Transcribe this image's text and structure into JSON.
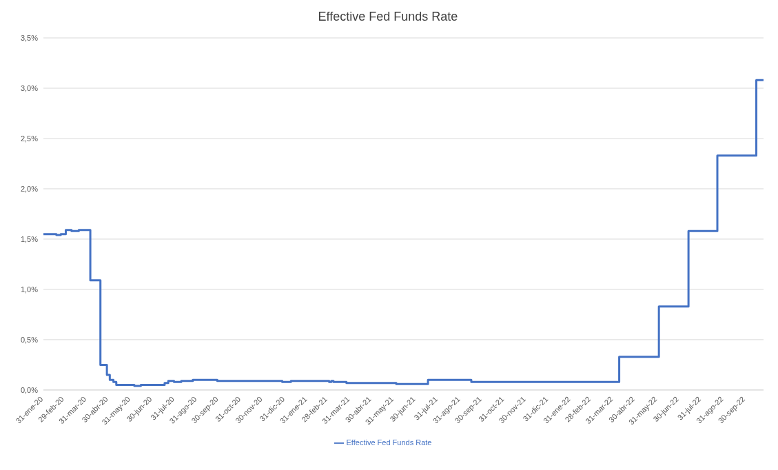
{
  "chart_data": {
    "type": "step",
    "title": "Effective Fed Funds Rate",
    "x": [
      "2020-01-31",
      "2020-02-14",
      "2020-02-18",
      "2020-02-24",
      "2020-03-02",
      "2020-03-10",
      "2020-03-20",
      "2020-04-05",
      "2020-04-14",
      "2020-04-19",
      "2020-04-26",
      "2020-04-28",
      "2020-05-02",
      "2020-05-07",
      "2020-05-11",
      "2020-06-05",
      "2020-06-14",
      "2020-07-06",
      "2020-07-17",
      "2020-07-22",
      "2020-07-30",
      "2020-08-09",
      "2020-08-25",
      "2020-09-28",
      "2020-12-27",
      "2021-01-08",
      "2021-03-02",
      "2021-03-05",
      "2021-03-08",
      "2021-03-26",
      "2021-06-03",
      "2021-07-17",
      "2021-09-15",
      "2022-04-08",
      "2022-06-02",
      "2022-07-13",
      "2022-08-22",
      "2022-10-15",
      "2022-10-25"
    ],
    "series": [
      {
        "name": "Effective Fed Funds Rate",
        "color": "#4472c4",
        "values": [
          1.55,
          1.55,
          1.54,
          1.55,
          1.59,
          1.58,
          1.59,
          1.09,
          1.09,
          0.25,
          0.25,
          0.15,
          0.1,
          0.08,
          0.05,
          0.04,
          0.05,
          0.05,
          0.07,
          0.09,
          0.08,
          0.09,
          0.1,
          0.09,
          0.08,
          0.09,
          0.08,
          0.09,
          0.08,
          0.07,
          0.06,
          0.1,
          0.08,
          0.33,
          0.83,
          1.58,
          2.33,
          3.08,
          3.08
        ]
      }
    ],
    "xlim": [
      "2020-01-31",
      "2022-10-25"
    ],
    "xticks": [
      {
        "value": "2020-01-31",
        "label": "31-ene-20"
      },
      {
        "value": "2020-02-29",
        "label": "29-feb-20"
      },
      {
        "value": "2020-03-31",
        "label": "31-mar-20"
      },
      {
        "value": "2020-04-30",
        "label": "30-abr-20"
      },
      {
        "value": "2020-05-31",
        "label": "31-may-20"
      },
      {
        "value": "2020-06-30",
        "label": "30-jun-20"
      },
      {
        "value": "2020-07-31",
        "label": "31-jul-20"
      },
      {
        "value": "2020-08-31",
        "label": "31-ago-20"
      },
      {
        "value": "2020-09-30",
        "label": "30-sep-20"
      },
      {
        "value": "2020-10-31",
        "label": "31-oct-20"
      },
      {
        "value": "2020-11-30",
        "label": "30-nov-20"
      },
      {
        "value": "2020-12-31",
        "label": "31-dic-20"
      },
      {
        "value": "2021-01-31",
        "label": "31-ene-21"
      },
      {
        "value": "2021-02-28",
        "label": "28-feb-21"
      },
      {
        "value": "2021-03-31",
        "label": "31-mar-21"
      },
      {
        "value": "2021-04-30",
        "label": "30-abr-21"
      },
      {
        "value": "2021-05-31",
        "label": "31-may-21"
      },
      {
        "value": "2021-06-30",
        "label": "30-jun-21"
      },
      {
        "value": "2021-07-31",
        "label": "31-jul-21"
      },
      {
        "value": "2021-08-31",
        "label": "31-ago-21"
      },
      {
        "value": "2021-09-30",
        "label": "30-sep-21"
      },
      {
        "value": "2021-10-31",
        "label": "31-oct-21"
      },
      {
        "value": "2021-11-30",
        "label": "30-nov-21"
      },
      {
        "value": "2021-12-31",
        "label": "31-dic-21"
      },
      {
        "value": "2022-01-31",
        "label": "31-ene-22"
      },
      {
        "value": "2022-02-28",
        "label": "28-feb-22"
      },
      {
        "value": "2022-03-31",
        "label": "31-mar-22"
      },
      {
        "value": "2022-04-30",
        "label": "30-abr-22"
      },
      {
        "value": "2022-05-31",
        "label": "31-may-22"
      },
      {
        "value": "2022-06-30",
        "label": "30-jun-22"
      },
      {
        "value": "2022-07-31",
        "label": "31-jul-22"
      },
      {
        "value": "2022-08-31",
        "label": "31-ago-22"
      },
      {
        "value": "2022-09-30",
        "label": "30-sep-22"
      }
    ],
    "ylim": [
      0,
      3.5
    ],
    "yticks": [
      {
        "value": 0,
        "label": "0,0%"
      },
      {
        "value": 0.5,
        "label": "0,5%"
      },
      {
        "value": 1,
        "label": "1,0%"
      },
      {
        "value": 1.5,
        "label": "1,5%"
      },
      {
        "value": 2,
        "label": "2,0%"
      },
      {
        "value": 2.5,
        "label": "2,5%"
      },
      {
        "value": 3,
        "label": "3,0%"
      },
      {
        "value": 3.5,
        "label": "3,5%"
      }
    ],
    "grid": "y",
    "legend": "bottom",
    "marker": "none",
    "line_style": "solid"
  }
}
